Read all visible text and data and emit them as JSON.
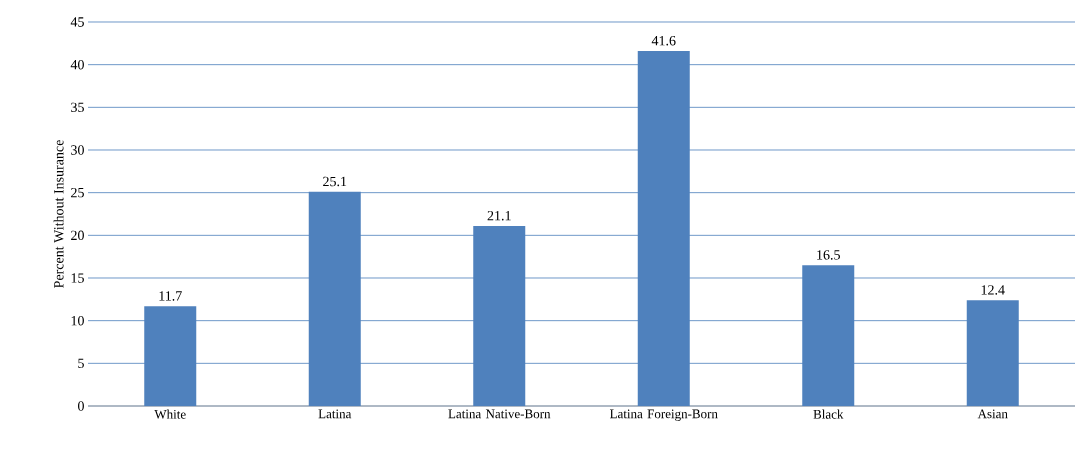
{
  "chart_data": {
    "type": "bar",
    "ylabel": "Percent Without Insurance",
    "categories": [
      "White",
      "Latina",
      "Latina Native-Born",
      "Latina Foreign-Born",
      "Black",
      "Asian"
    ],
    "values": [
      11.7,
      25.1,
      21.1,
      41.6,
      16.5,
      12.4
    ],
    "color": "#4f81bd",
    "ylim": [
      0,
      45
    ],
    "yticks": [
      0,
      5,
      10,
      15,
      20,
      25,
      30,
      35,
      40,
      45
    ],
    "grid": "y",
    "data_labels": true
  }
}
